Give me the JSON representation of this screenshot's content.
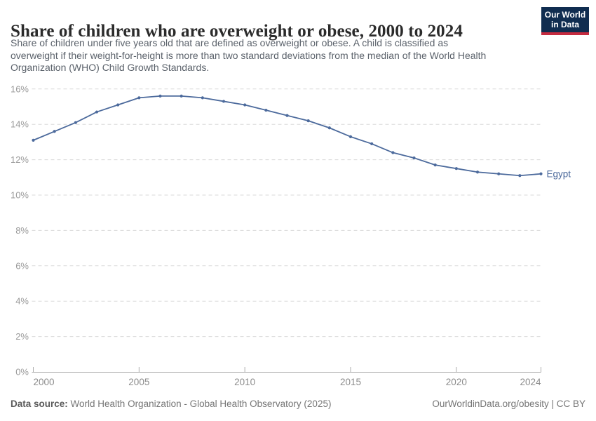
{
  "header": {
    "title": "Share of children who are overweight or obese, 2000 to 2024",
    "logo": {
      "line1": "Our World",
      "line2": "in Data"
    }
  },
  "subtitle": {
    "lines": [
      "Share of children under five years old that are defined as overweight or obese. A child is classified as",
      "overweight if their weight-for-height is more than two standard deviations from the median of the World Health",
      "Organization (WHO) Child Growth Standards."
    ]
  },
  "chart_data": {
    "type": "line",
    "title": "Share of children who are overweight or obese, 2000 to 2024",
    "x": [
      2000,
      2001,
      2002,
      2003,
      2004,
      2005,
      2006,
      2007,
      2008,
      2009,
      2010,
      2011,
      2012,
      2013,
      2014,
      2015,
      2016,
      2017,
      2018,
      2019,
      2020,
      2021,
      2022,
      2023,
      2024
    ],
    "series": [
      {
        "name": "Egypt",
        "color": "#4C6A9C",
        "values": [
          13.1,
          13.6,
          14.1,
          14.7,
          15.1,
          15.5,
          15.6,
          15.6,
          15.5,
          15.3,
          15.1,
          14.8,
          14.5,
          14.2,
          13.8,
          13.3,
          12.9,
          12.4,
          12.1,
          11.7,
          11.5,
          11.3,
          11.2,
          11.1,
          11.2
        ]
      }
    ],
    "xlim": [
      2000,
      2024
    ],
    "ylim": [
      0,
      16
    ],
    "xticks": [
      2000,
      2005,
      2010,
      2015,
      2020,
      2024
    ],
    "yticks": [
      0,
      2,
      4,
      6,
      8,
      10,
      12,
      14,
      16
    ],
    "y_tick_suffix": "%",
    "grid": true,
    "legend_position": "end-of-line",
    "xlabel": "",
    "ylabel": ""
  },
  "colors": {
    "line": "#4C6A9C",
    "grid": "#dadada",
    "axis": "#adadad",
    "tick_label": "#8c8c8c",
    "logo_bg": "#102d50",
    "logo_stripe": "#c52b40"
  },
  "footer": {
    "source_label": "Data source:",
    "source_text": " World Health Organization - Global Health Observatory (2025)",
    "link_text": "OurWorldinData.org/obesity",
    "separator": " | ",
    "license_text": "CC BY"
  }
}
